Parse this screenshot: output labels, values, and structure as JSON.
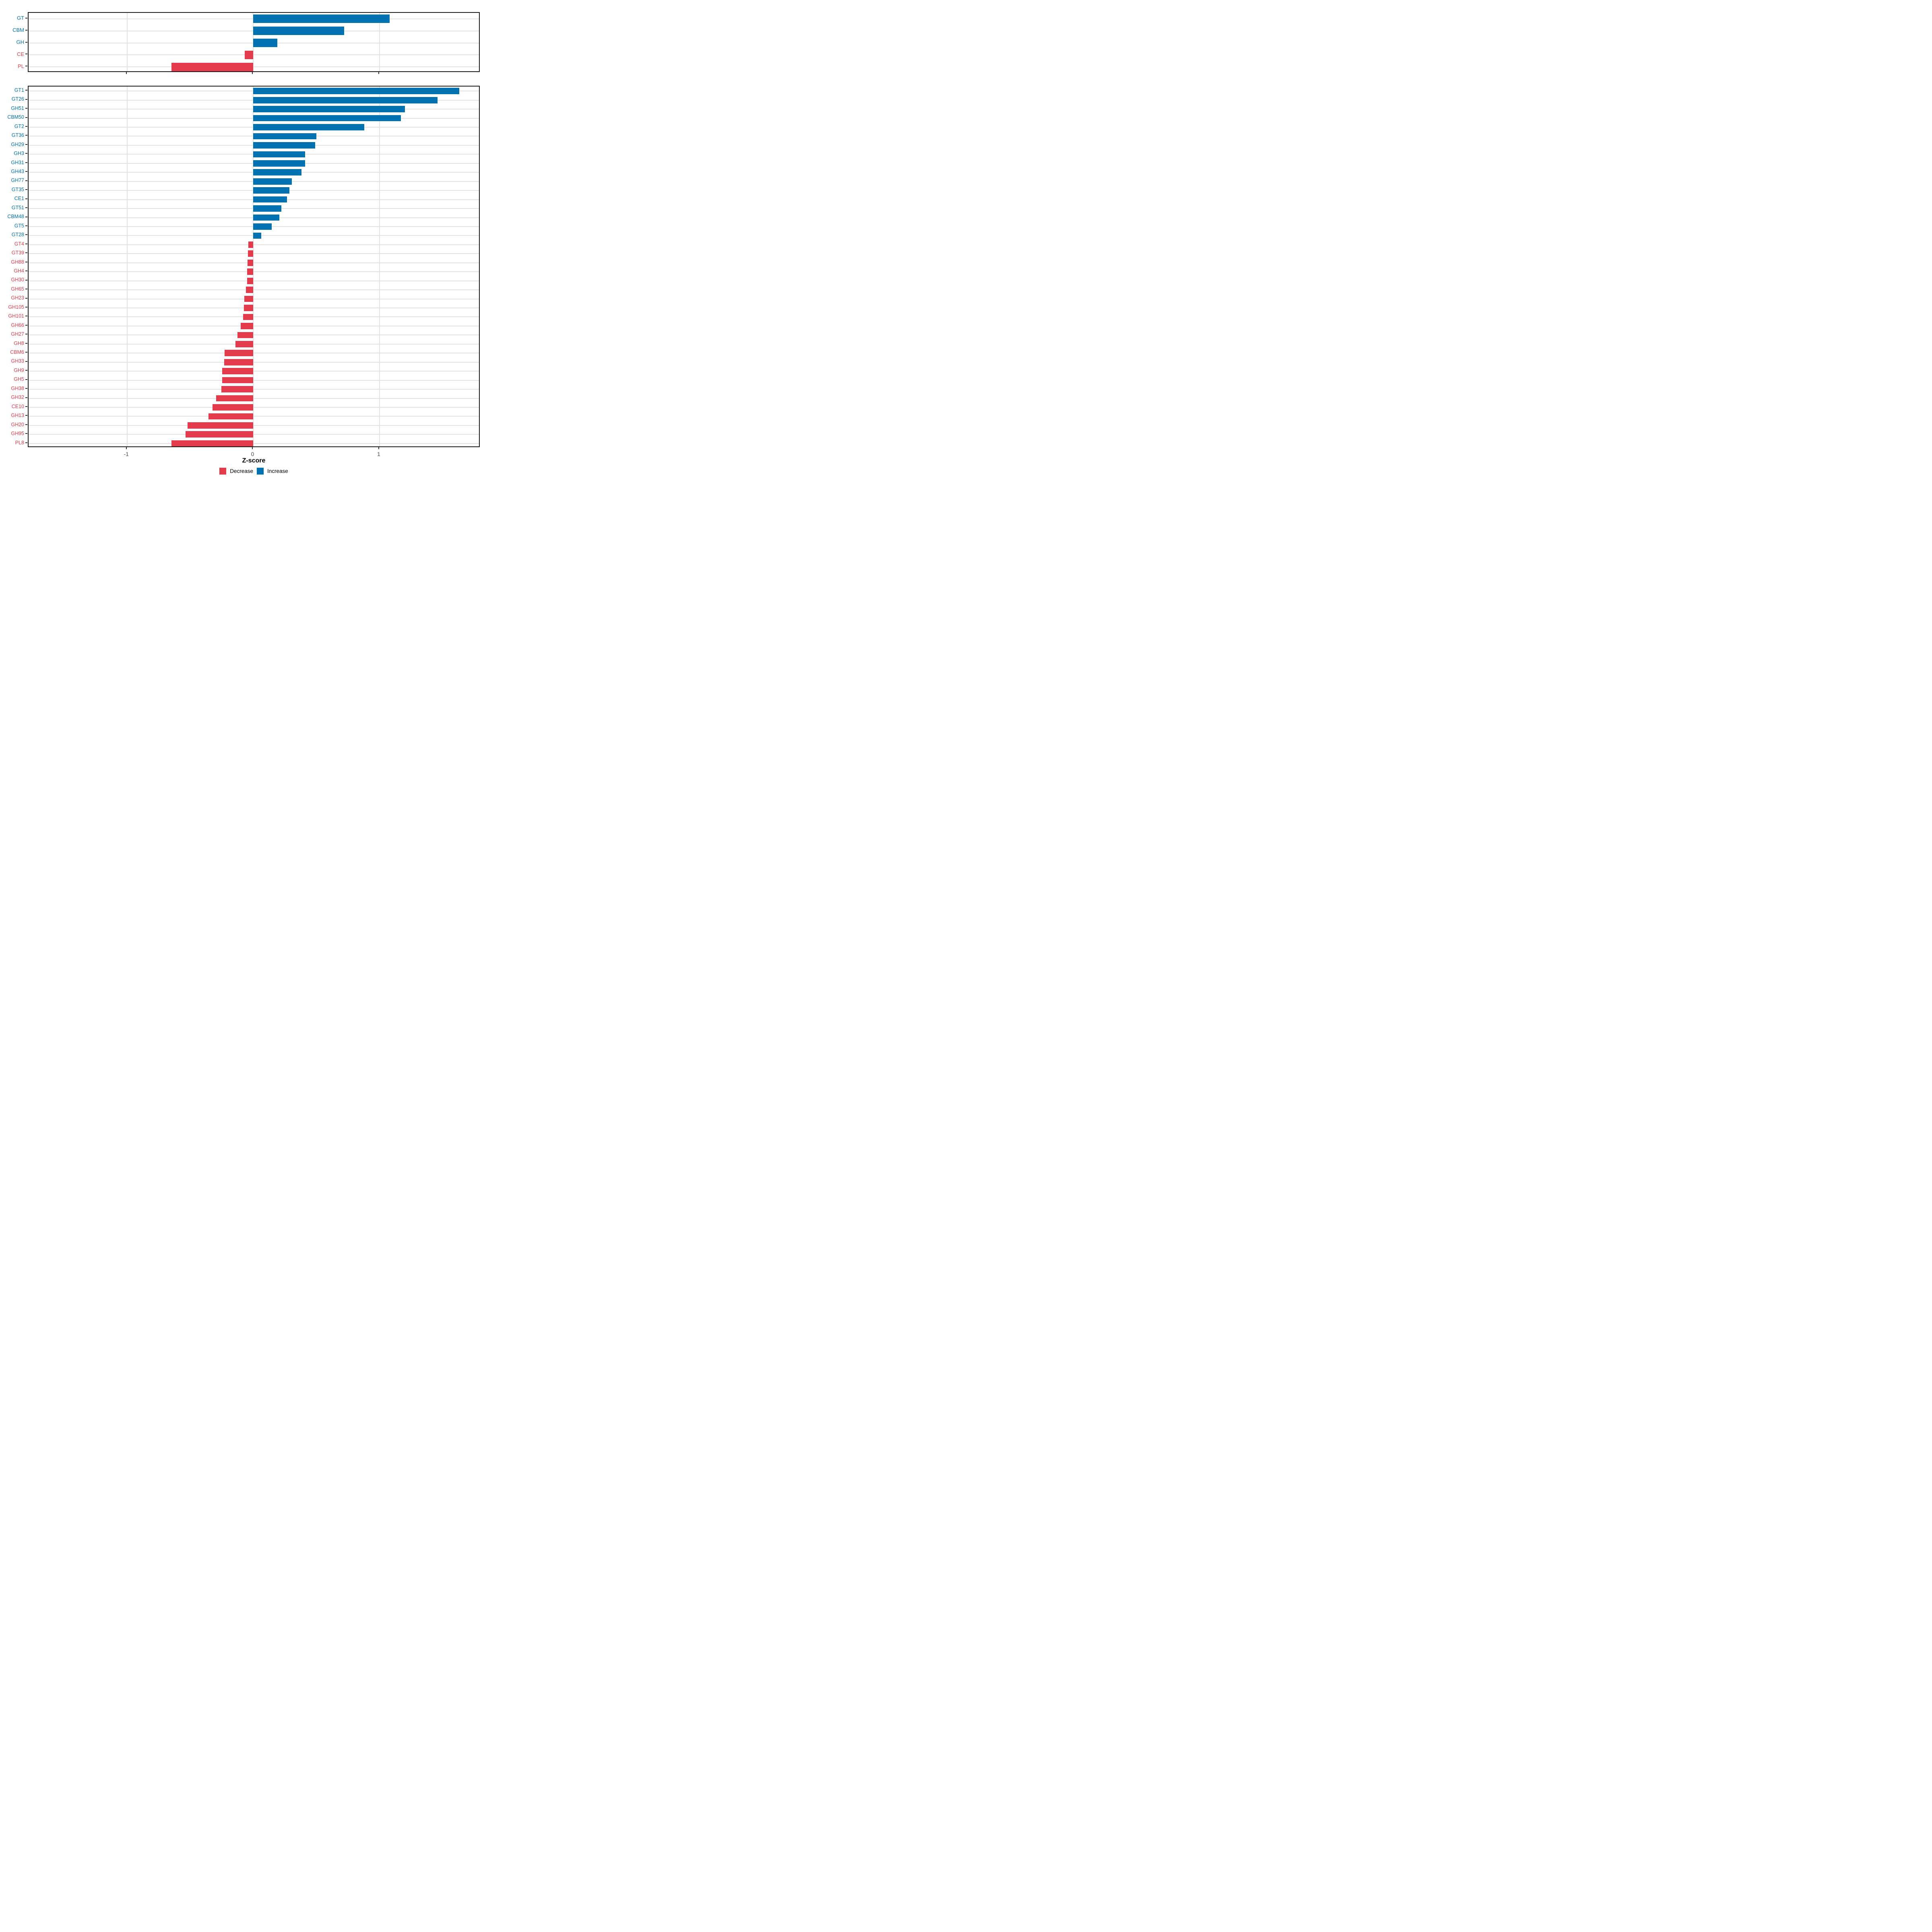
{
  "axis": {
    "xlabel": "Z-score",
    "tick_labels": [
      "-1",
      "0",
      "1"
    ],
    "tick_values": [
      -1,
      0,
      1
    ],
    "xlim": [
      -1.78,
      1.8
    ]
  },
  "legend": {
    "items": [
      {
        "label": "Decrease",
        "color": "#E33B4B"
      },
      {
        "label": "Increase",
        "color": "#0072B2"
      }
    ]
  },
  "colors": {
    "increase": "#0072B2",
    "decrease": "#E33B4B",
    "grid": "#E3E3E3",
    "panel_border": "#1A1A1A",
    "axis_text": "#4D4D4D",
    "tick": "#333333"
  },
  "chart_data": [
    {
      "type": "bar",
      "orientation": "horizontal",
      "xlabel": "Z-score",
      "xlim": [
        -1.78,
        1.8
      ],
      "grid": true,
      "legend_position": "bottom",
      "categories": [
        "GT",
        "CBM",
        "GH",
        "CE",
        "PL"
      ],
      "values": [
        1.08,
        0.72,
        0.19,
        -0.068,
        -0.648
      ]
    },
    {
      "type": "bar",
      "orientation": "horizontal",
      "xlabel": "Z-score",
      "xlim": [
        -1.78,
        1.8
      ],
      "grid": true,
      "legend_position": "bottom",
      "categories": [
        "GT1",
        "GT26",
        "GH51",
        "CBM50",
        "GT2",
        "GT36",
        "GH29",
        "GH3",
        "GH31",
        "GH43",
        "GH77",
        "GT35",
        "CE1",
        "GT51",
        "CBM48",
        "GT5",
        "GT28",
        "GT4",
        "GT39",
        "GH88",
        "GH4",
        "GH30",
        "GH65",
        "GH23",
        "GH105",
        "GH101",
        "GH66",
        "GH27",
        "GH8",
        "CBM6",
        "GH33",
        "GH9",
        "GH5",
        "GH38",
        "GH32",
        "CE10",
        "GH13",
        "GH20",
        "GH95",
        "PL8"
      ],
      "values": [
        1.63,
        1.46,
        1.2,
        1.17,
        0.88,
        0.5,
        0.49,
        0.411,
        0.409,
        0.38,
        0.304,
        0.287,
        0.267,
        0.222,
        0.205,
        0.146,
        0.064,
        -0.04,
        -0.044,
        -0.046,
        -0.048,
        -0.05,
        -0.06,
        -0.072,
        -0.076,
        -0.082,
        -0.101,
        -0.124,
        -0.143,
        -0.228,
        -0.23,
        -0.246,
        -0.247,
        -0.252,
        -0.294,
        -0.324,
        -0.354,
        -0.522,
        -0.536,
        -0.648
      ]
    }
  ]
}
